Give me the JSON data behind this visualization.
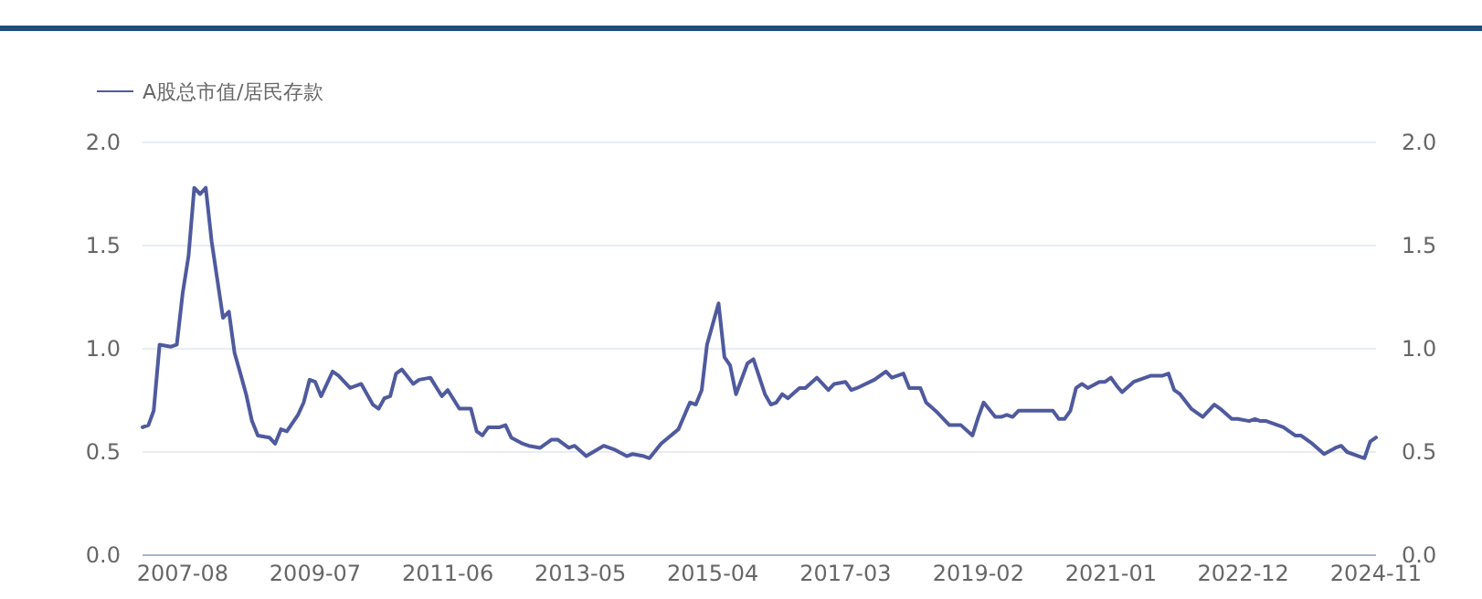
{
  "chart_data": {
    "type": "line",
    "x": [
      "2007-01",
      "2007-02",
      "2007-03",
      "2007-04",
      "2007-06",
      "2007-07",
      "2007-08",
      "2007-09",
      "2007-10",
      "2007-11",
      "2007-12",
      "2008-01",
      "2008-03",
      "2008-04",
      "2008-05",
      "2008-06",
      "2008-07",
      "2008-08",
      "2008-09",
      "2008-11",
      "2008-12",
      "2009-01",
      "2009-02",
      "2009-04",
      "2009-05",
      "2009-06",
      "2009-07",
      "2009-08",
      "2009-10",
      "2009-11",
      "2010-01",
      "2010-03",
      "2010-05",
      "2010-06",
      "2010-07",
      "2010-08",
      "2010-09",
      "2010-10",
      "2010-12",
      "2011-01",
      "2011-03",
      "2011-05",
      "2011-06",
      "2011-08",
      "2011-10",
      "2011-11",
      "2011-12",
      "2012-01",
      "2012-03",
      "2012-04",
      "2012-05",
      "2012-07",
      "2012-08",
      "2012-10",
      "2012-12",
      "2013-01",
      "2013-03",
      "2013-04",
      "2013-06",
      "2013-09",
      "2013-11",
      "2014-01",
      "2014-02",
      "2014-04",
      "2014-05",
      "2014-07",
      "2014-10",
      "2014-12",
      "2015-01",
      "2015-02",
      "2015-03",
      "2015-05",
      "2015-06",
      "2015-07",
      "2015-08",
      "2015-10",
      "2015-11",
      "2016-01",
      "2016-02",
      "2016-03",
      "2016-04",
      "2016-05",
      "2016-07",
      "2016-08",
      "2016-10",
      "2016-12",
      "2017-01",
      "2017-03",
      "2017-04",
      "2017-05",
      "2017-08",
      "2017-10",
      "2017-11",
      "2018-01",
      "2018-02",
      "2018-04",
      "2018-05",
      "2018-07",
      "2018-09",
      "2018-11",
      "2019-01",
      "2019-02",
      "2019-03",
      "2019-05",
      "2019-06",
      "2019-07",
      "2019-08",
      "2019-09",
      "2020-02",
      "2020-03",
      "2020-04",
      "2020-05",
      "2020-06",
      "2020-07",
      "2020-08",
      "2020-09",
      "2020-11",
      "2020-12",
      "2021-01",
      "2021-02",
      "2021-03",
      "2021-05",
      "2021-08",
      "2021-10",
      "2021-11",
      "2021-12",
      "2022-01",
      "2022-03",
      "2022-05",
      "2022-07",
      "2022-08",
      "2022-10",
      "2022-11",
      "2023-01",
      "2023-02",
      "2023-03",
      "2023-04",
      "2023-06",
      "2023-07",
      "2023-09",
      "2023-10",
      "2023-12",
      "2024-02",
      "2024-04",
      "2024-05",
      "2024-06",
      "2024-08",
      "2024-09",
      "2024-10",
      "2024-11"
    ],
    "series": [
      {
        "name": "A股总市值/居民存款",
        "color": "#4f5a9e",
        "values": [
          0.62,
          0.63,
          0.7,
          1.02,
          1.01,
          1.02,
          1.27,
          1.45,
          1.78,
          1.75,
          1.78,
          1.52,
          1.15,
          1.18,
          0.98,
          0.88,
          0.78,
          0.65,
          0.58,
          0.57,
          0.54,
          0.61,
          0.6,
          0.68,
          0.74,
          0.85,
          0.84,
          0.77,
          0.89,
          0.87,
          0.81,
          0.83,
          0.73,
          0.71,
          0.76,
          0.77,
          0.88,
          0.9,
          0.83,
          0.85,
          0.86,
          0.77,
          0.8,
          0.71,
          0.71,
          0.6,
          0.58,
          0.62,
          0.62,
          0.63,
          0.57,
          0.54,
          0.53,
          0.52,
          0.56,
          0.56,
          0.52,
          0.53,
          0.48,
          0.53,
          0.51,
          0.48,
          0.49,
          0.48,
          0.47,
          0.54,
          0.61,
          0.74,
          0.73,
          0.8,
          1.02,
          1.22,
          0.96,
          0.92,
          0.78,
          0.93,
          0.95,
          0.78,
          0.73,
          0.74,
          0.78,
          0.76,
          0.81,
          0.81,
          0.86,
          0.8,
          0.83,
          0.84,
          0.8,
          0.81,
          0.85,
          0.89,
          0.86,
          0.88,
          0.81,
          0.81,
          0.74,
          0.69,
          0.63,
          0.63,
          0.58,
          0.67,
          0.74,
          0.67,
          0.67,
          0.68,
          0.67,
          0.7,
          0.7,
          0.7,
          0.66,
          0.66,
          0.7,
          0.81,
          0.83,
          0.81,
          0.84,
          0.84,
          0.86,
          0.82,
          0.79,
          0.84,
          0.87,
          0.87,
          0.88,
          0.8,
          0.78,
          0.71,
          0.67,
          0.73,
          0.71,
          0.66,
          0.66,
          0.65,
          0.66,
          0.65,
          0.65,
          0.63,
          0.62,
          0.58,
          0.58,
          0.54,
          0.49,
          0.52,
          0.53,
          0.5,
          0.48,
          0.47,
          0.55,
          0.57
        ]
      }
    ],
    "xlim": [
      "2007-01",
      "2024-11"
    ],
    "xticks": [
      "2007-08",
      "2009-07",
      "2011-06",
      "2013-05",
      "2015-04",
      "2017-03",
      "2019-02",
      "2021-01",
      "2022-12",
      "2024-11"
    ],
    "ylim": [
      0,
      2
    ],
    "yticks": [
      {
        "value": 0,
        "label": "0.0"
      },
      {
        "value": 0.5,
        "label": "0.5"
      },
      {
        "value": 1,
        "label": "1.0"
      },
      {
        "value": 1.5,
        "label": "1.5"
      },
      {
        "value": 2,
        "label": "2.0"
      }
    ],
    "y2lim": [
      0,
      2
    ],
    "y2ticks": [
      {
        "value": 0,
        "label": "0.0"
      },
      {
        "value": 0.5,
        "label": "0.5"
      },
      {
        "value": 1,
        "label": "1.0"
      },
      {
        "value": 1.5,
        "label": "1.5"
      },
      {
        "value": 2,
        "label": "2.0"
      }
    ],
    "grid": "y",
    "legend": "top left",
    "marker": "none",
    "line_style": "solid"
  }
}
